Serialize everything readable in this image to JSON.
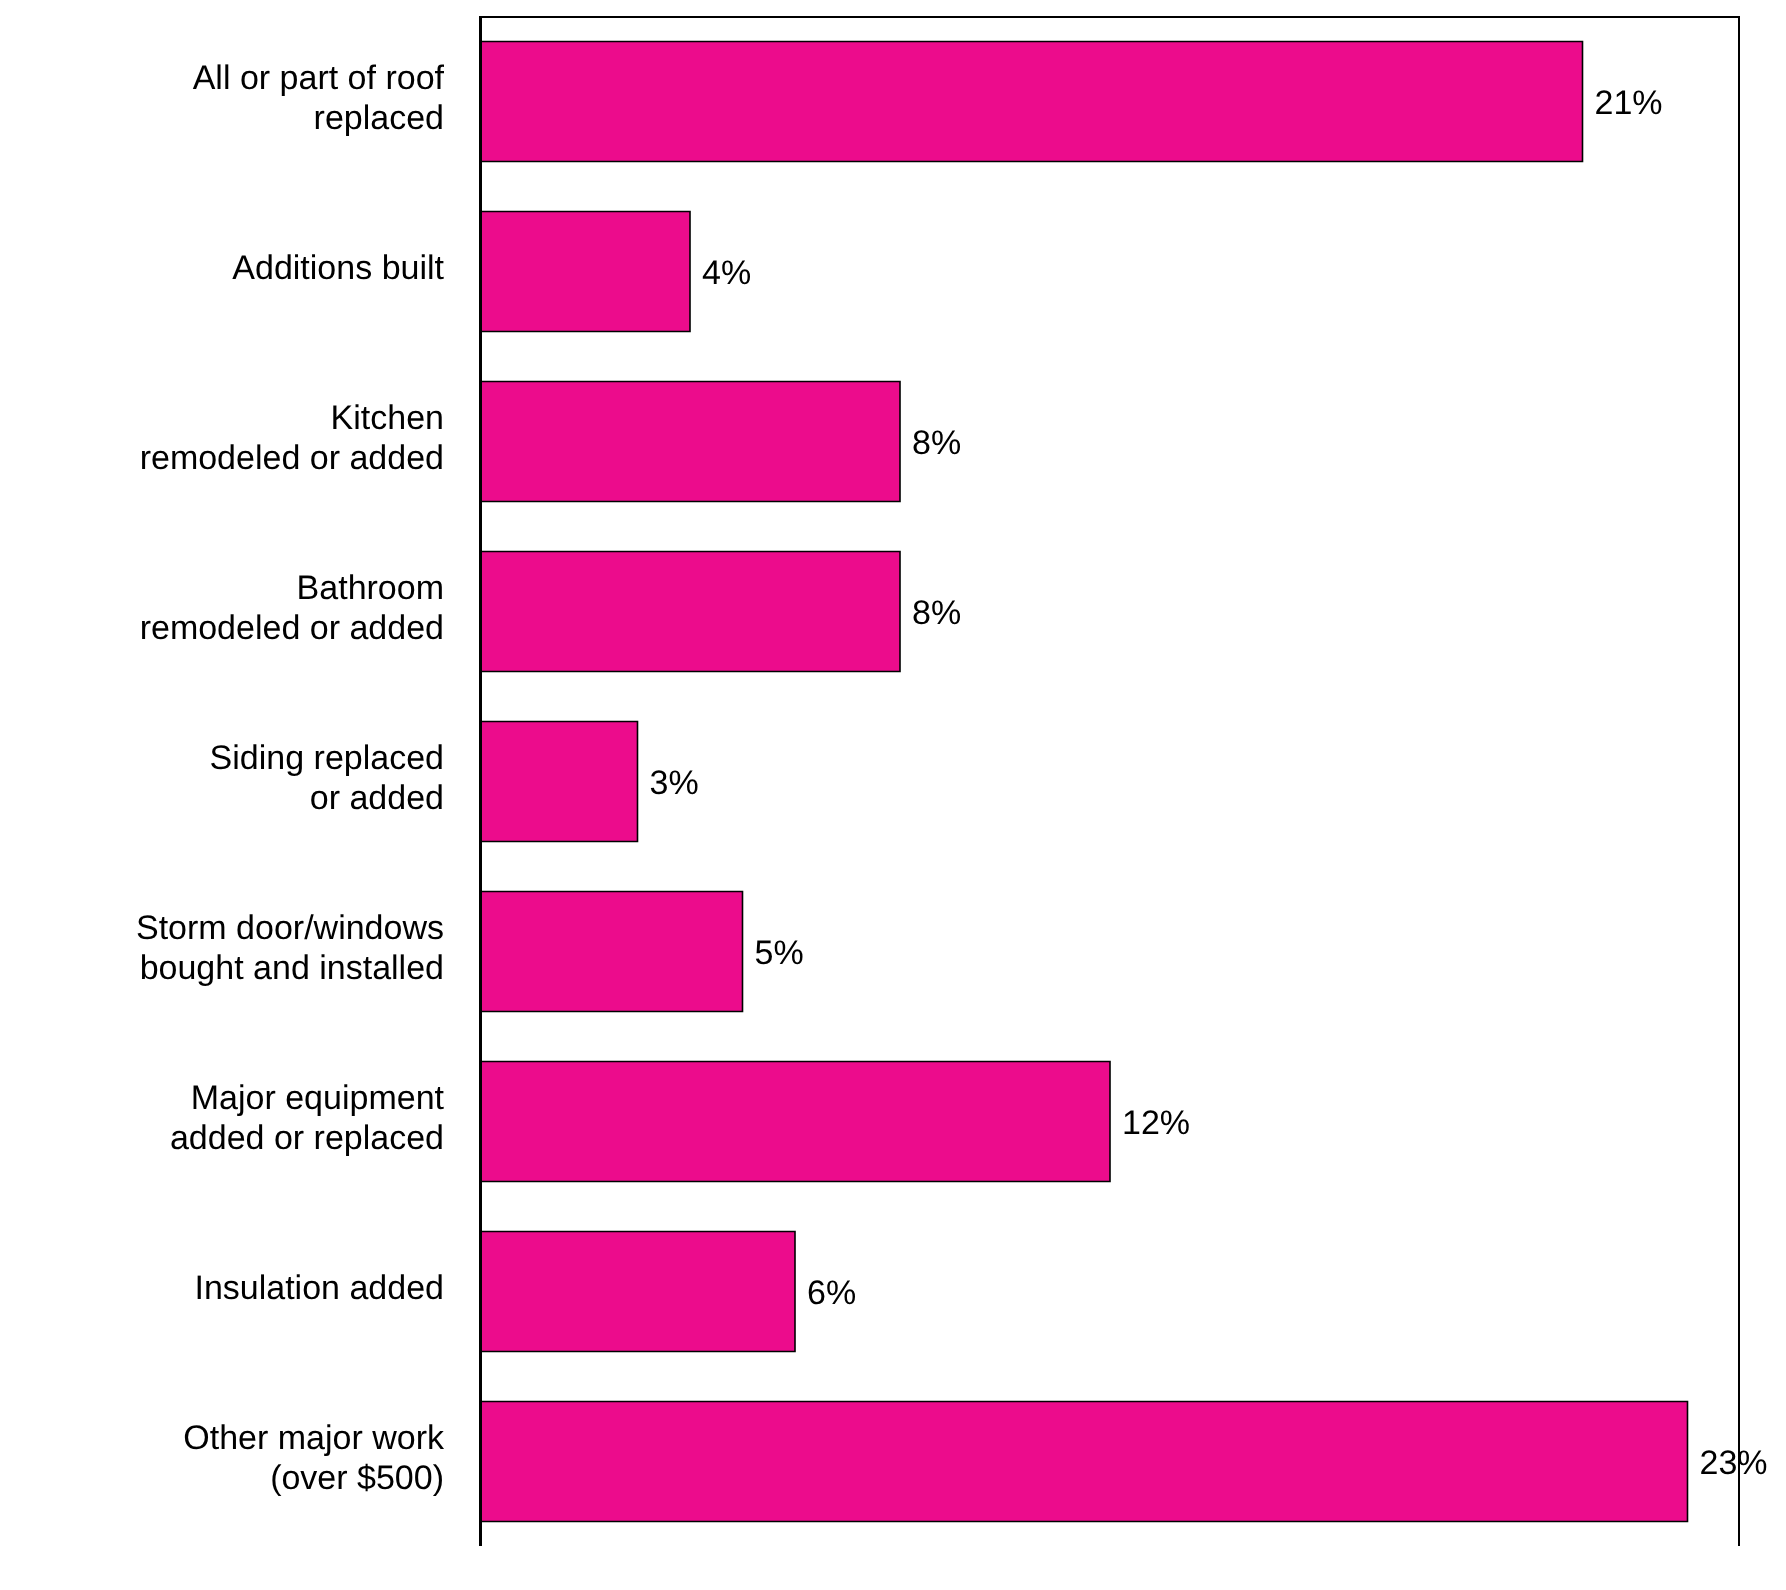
{
  "chart_data": {
    "type": "bar",
    "orientation": "horizontal",
    "categories": [
      "All or part of roof\nreplaced",
      "Additions built",
      "Kitchen\nremodeled or added",
      "Bathroom\nremodeled or added",
      "Siding replaced\nor added",
      "Storm door/windows\nbought and installed",
      "Major equipment\nadded or replaced",
      "Insulation added",
      "Other major work\n(over $500)"
    ],
    "values": [
      21,
      4,
      8,
      8,
      3,
      5,
      12,
      6,
      23
    ],
    "value_labels": [
      "21%",
      "4%",
      "8%",
      "8%",
      "3%",
      "5%",
      "12%",
      "6%",
      "23%"
    ],
    "color": "#ec0c8c",
    "xlim": [
      0,
      24
    ],
    "tick_labels": "y"
  }
}
